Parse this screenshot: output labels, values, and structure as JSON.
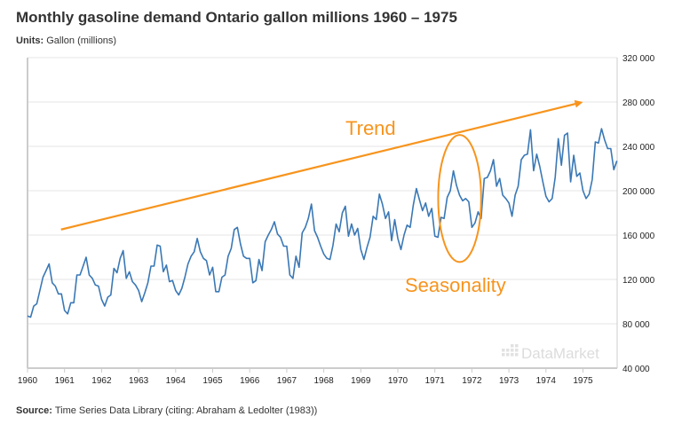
{
  "header": {
    "title": "Monthly gasoline demand Ontario gallon millions 1960 – 1975",
    "units_label": "Units:",
    "units_value": "Gallon (millions)"
  },
  "footer": {
    "source_label": "Source:",
    "source_value": "Time Series Data Library (citing: Abraham & Ledolter (1983))"
  },
  "watermark": "DataMarket",
  "colors": {
    "line": "#3a78b5",
    "annotation": "#f7941d",
    "grid": "#e6e6e6",
    "axis": "#cccccc"
  },
  "chart_data": {
    "type": "line",
    "title": "Monthly gasoline demand Ontario gallon millions 1960 – 1975",
    "ylabel": "Gallon (millions)",
    "ylim": [
      40000,
      320000
    ],
    "xlim": [
      1960,
      1975.92
    ],
    "yticks": [
      40000,
      80000,
      120000,
      160000,
      200000,
      240000,
      280000,
      320000
    ],
    "ytick_labels": [
      "40 000",
      "80 000",
      "120 000",
      "160 000",
      "200 000",
      "240 000",
      "280 000",
      "320 000"
    ],
    "xticks": [
      "1960",
      "1961",
      "1962",
      "1963",
      "1964",
      "1965",
      "1966",
      "1967",
      "1968",
      "1969",
      "1970",
      "1971",
      "1972",
      "1973",
      "1974",
      "1975"
    ],
    "grid": true,
    "start_year": 1960,
    "frequency": "monthly",
    "series": [
      {
        "name": "Gasoline demand",
        "values": [
          87000,
          86000,
          96000,
          98000,
          110000,
          122000,
          128000,
          134000,
          117000,
          114000,
          107000,
          107000,
          92000,
          89000,
          99000,
          99000,
          124000,
          124000,
          132000,
          140000,
          124000,
          121000,
          115000,
          114000,
          102000,
          96000,
          104000,
          106000,
          130000,
          126000,
          139000,
          146000,
          121000,
          127000,
          118000,
          115000,
          110000,
          100000,
          108000,
          117000,
          132000,
          132000,
          151000,
          150000,
          127000,
          133000,
          118000,
          119000,
          110000,
          106000,
          112000,
          122000,
          134000,
          141000,
          145000,
          157000,
          145000,
          139000,
          137000,
          124000,
          131000,
          109000,
          109000,
          122000,
          124000,
          141000,
          148000,
          165000,
          167000,
          152000,
          141000,
          139000,
          139000,
          117000,
          119000,
          138000,
          128000,
          154000,
          160000,
          165000,
          172000,
          161000,
          158000,
          150000,
          150000,
          124000,
          121000,
          141000,
          131000,
          162000,
          167000,
          175000,
          188000,
          164000,
          158000,
          150000,
          143000,
          139000,
          138000,
          151000,
          170000,
          163000,
          180000,
          186000,
          159000,
          170000,
          160000,
          166000,
          147000,
          138000,
          149000,
          158000,
          177000,
          174000,
          197000,
          188000,
          175000,
          181000,
          155000,
          174000,
          157000,
          147000,
          160000,
          169000,
          167000,
          187000,
          202000,
          192000,
          182000,
          189000,
          177000,
          184000,
          159000,
          158000,
          176000,
          175000,
          194000,
          200000,
          218000,
          205000,
          196000,
          191000,
          193000,
          190000,
          167000,
          171000,
          181000,
          175000,
          211000,
          212000,
          218000,
          228000,
          204000,
          211000,
          196000,
          193000,
          189000,
          177000,
          196000,
          204000,
          228000,
          232000,
          233000,
          255000,
          218000,
          233000,
          222000,
          208000,
          195000,
          190000,
          193000,
          212000,
          247000,
          223000,
          250000,
          252000,
          208000,
          232000,
          213000,
          216000,
          200000,
          193000,
          197000,
          210000,
          244000,
          243000,
          256000,
          246000,
          238000,
          238000,
          219000,
          227000
        ]
      }
    ],
    "annotations": [
      {
        "type": "arrow",
        "label": "Trend",
        "from": [
          1961,
          165000
        ],
        "to": [
          1975,
          280000
        ]
      },
      {
        "type": "ellipse",
        "label": "Seasonality",
        "center": [
          1971.67,
          193000
        ],
        "x_radius_years": 0.58,
        "y_radius": 91000
      }
    ]
  }
}
